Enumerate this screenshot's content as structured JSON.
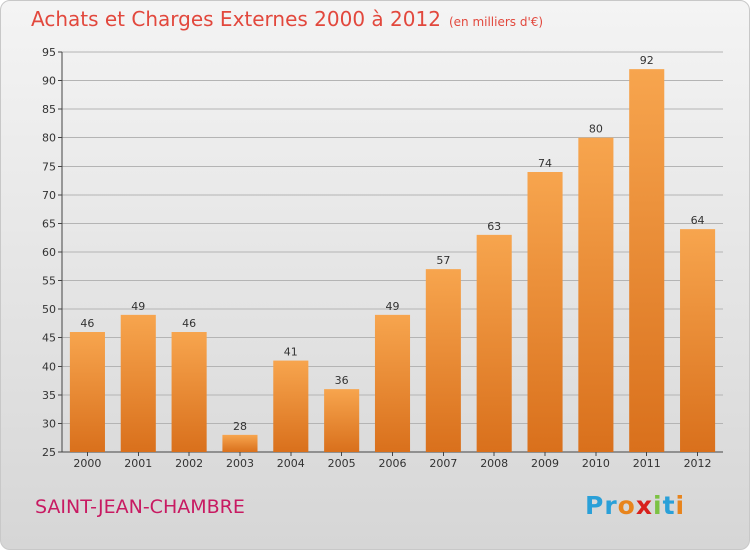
{
  "header": {
    "title": "Achats et Charges Externes 2000 à 2012",
    "unit": "(en milliers d'€)"
  },
  "footer": {
    "commune": "SAINT-JEAN-CHAMBRE",
    "logo": {
      "letters": [
        "P",
        "r",
        "o",
        "x",
        "i",
        "t",
        "i"
      ],
      "colors": [
        "#2aa0d8",
        "#2aa0d8",
        "#e8841c",
        "#d8201c",
        "#7cc243",
        "#2aa0d8",
        "#e8841c"
      ]
    }
  },
  "colors": {
    "bar_light": "#f7a54e",
    "bar_dark": "#d9701c",
    "title": "#e2483d",
    "commune": "#c81a62"
  },
  "chart_data": {
    "type": "bar",
    "title": "Achats et Charges Externes 2000 à 2012",
    "subtitle": "(en milliers d'€)",
    "xlabel": "",
    "ylabel": "",
    "categories": [
      "2000",
      "2001",
      "2002",
      "2003",
      "2004",
      "2005",
      "2006",
      "2007",
      "2008",
      "2009",
      "2010",
      "2011",
      "2012"
    ],
    "values": [
      46,
      49,
      46,
      28,
      41,
      36,
      49,
      57,
      63,
      74,
      80,
      92,
      64
    ],
    "ylim": [
      25,
      95
    ],
    "yticks": [
      25,
      30,
      35,
      40,
      45,
      50,
      55,
      60,
      65,
      70,
      75,
      80,
      85,
      90,
      95
    ],
    "grid": true,
    "legend": "none"
  }
}
